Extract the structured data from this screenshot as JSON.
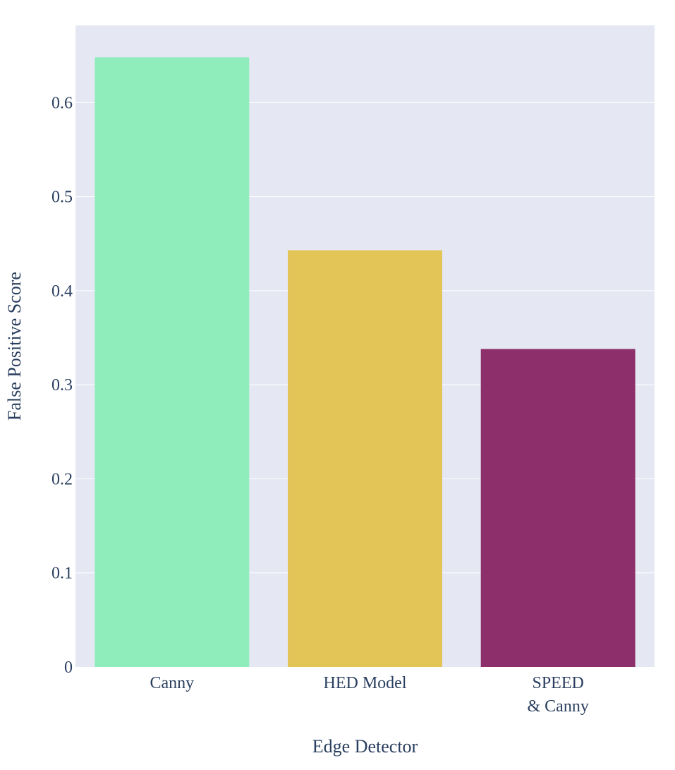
{
  "chart_data": {
    "type": "bar",
    "categories": [
      [
        "Canny"
      ],
      [
        "HED Model"
      ],
      [
        "SPEED",
        "& Canny"
      ]
    ],
    "values": [
      0.648,
      0.443,
      0.338
    ],
    "colors": [
      "#8EEDBA",
      "#E3C457",
      "#8D2F6B"
    ],
    "xlabel": "Edge Detector",
    "ylabel": "False Positive Score",
    "ylim": [
      0,
      0.682
    ],
    "yticks": [
      0,
      0.1,
      0.2,
      0.3,
      0.4,
      0.5,
      0.6
    ],
    "ytick_labels": [
      "0",
      "0.1",
      "0.2",
      "0.3",
      "0.4",
      "0.5",
      "0.6"
    ],
    "plot_background": "#E5E8F3",
    "grid": true,
    "legend": "none"
  }
}
